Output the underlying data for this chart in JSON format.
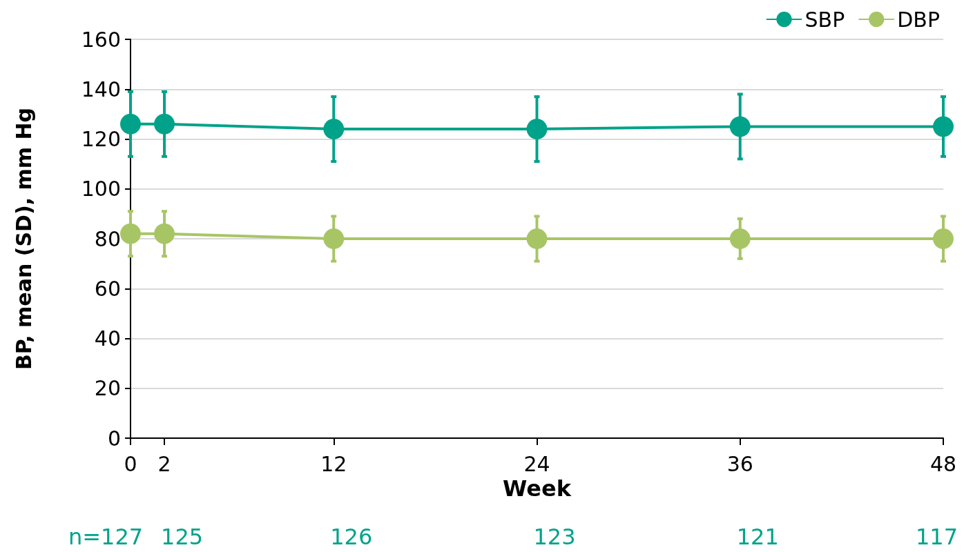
{
  "chart_data": {
    "type": "line",
    "xlabel": "Week",
    "ylabel": "BP, mean (SD), mm Hg",
    "x": [
      0,
      2,
      12,
      24,
      36,
      48
    ],
    "series": [
      {
        "name": "SBP",
        "color": "#00a28a",
        "values": [
          126,
          126,
          124,
          124,
          125,
          125
        ],
        "errors": [
          13,
          13,
          13,
          13,
          13,
          12
        ]
      },
      {
        "name": "DBP",
        "color": "#a8c566",
        "values": [
          82,
          82,
          80,
          80,
          80,
          80
        ],
        "errors": [
          9,
          9,
          9,
          9,
          8,
          9
        ]
      }
    ],
    "xlim": [
      0,
      48
    ],
    "xticks": [
      0,
      2,
      12,
      24,
      36,
      48
    ],
    "ylim": [
      0,
      160
    ],
    "yticks": [
      0,
      20,
      40,
      60,
      80,
      100,
      120,
      140,
      160
    ],
    "grid": "y",
    "legend": "top right",
    "marker": "circle",
    "line_style": "solid",
    "annotations": [
      "n=127",
      "125",
      "126",
      "123",
      "121",
      "117"
    ]
  }
}
